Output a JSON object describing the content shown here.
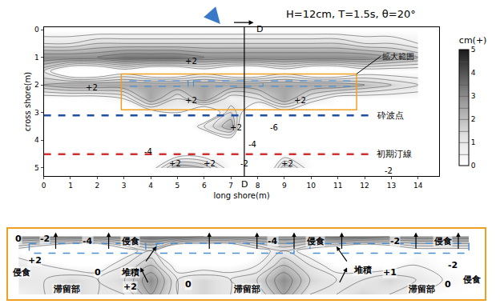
{
  "chart_data": [
    {
      "type": "contour",
      "title": "H=12cm, T=1.5s, θ=20°",
      "x_label": "long shore(m)",
      "y_label": "cross shore(m)",
      "x": [
        0,
        1,
        2,
        3,
        4,
        5,
        6,
        7,
        8,
        9,
        10,
        11,
        12,
        13,
        14
      ],
      "y": [
        0,
        0.5,
        1,
        1.5,
        2,
        2.5,
        3,
        3.5,
        4,
        4.5,
        5
      ],
      "z": [
        [
          0,
          0,
          0,
          0,
          0,
          0,
          0,
          0,
          0,
          0,
          0,
          0,
          0,
          0,
          0
        ],
        [
          1,
          1,
          1.5,
          1.5,
          1.5,
          1.5,
          1.5,
          1.5,
          1.5,
          1.5,
          1.5,
          1.5,
          1,
          1,
          0.5
        ],
        [
          3,
          3,
          3,
          3.5,
          3.5,
          3.5,
          3,
          3,
          3,
          3,
          3,
          3,
          3,
          2.5,
          2
        ],
        [
          1,
          -1,
          -1,
          0,
          -1,
          -1,
          0,
          -1,
          -1,
          0,
          -1,
          -1,
          0,
          0,
          0
        ],
        [
          2,
          2.5,
          2.5,
          2.5,
          2.5,
          2.5,
          2.5,
          2.5,
          2.5,
          2.5,
          2.5,
          2.5,
          2,
          1.5,
          1
        ],
        [
          0,
          0,
          0,
          0.5,
          2.5,
          1,
          2.5,
          0.5,
          1,
          2.5,
          1,
          0,
          0,
          0,
          0
        ],
        [
          0,
          0,
          0,
          -1,
          0,
          0.5,
          -1,
          1.5,
          -1,
          0,
          -1,
          0,
          0,
          0,
          0
        ],
        [
          0,
          0,
          0,
          -2,
          -2,
          -1,
          1,
          2.5,
          -5,
          -2,
          -1,
          0,
          0,
          0,
          0
        ],
        [
          0,
          0,
          0,
          -2,
          -4,
          -2,
          -1,
          0,
          -4,
          -2,
          -1,
          0,
          0,
          0,
          0
        ],
        [
          0,
          0,
          0,
          0,
          -1,
          0,
          0,
          0,
          -1,
          0,
          0,
          0,
          0,
          0,
          0
        ],
        [
          0,
          0,
          0,
          0,
          0,
          2.5,
          2,
          0,
          -2,
          2,
          0,
          0,
          0,
          -2,
          0
        ]
      ],
      "xlim": [
        0,
        14.8
      ],
      "xticks": [
        0,
        1,
        2,
        3,
        4,
        5,
        6,
        7,
        8,
        9,
        10,
        11,
        12,
        13,
        14
      ],
      "ylim": [
        5.3,
        -0.1
      ],
      "yticks": [
        0,
        1,
        2,
        3,
        4,
        5
      ],
      "colorbar": {
        "title": "cm(+)",
        "range": [
          0,
          5
        ],
        "ticks": [
          0,
          1,
          2,
          3,
          4,
          5
        ]
      },
      "lines": [
        {
          "text": "砕波点",
          "y": 3.1,
          "x": [
            0,
            12.4
          ],
          "color": "#2050a0",
          "line_style": "dash"
        },
        {
          "text": "初期汀線",
          "y": 4.5,
          "x": [
            0,
            12.4
          ],
          "color": "#d03030",
          "line_style": "dash"
        }
      ],
      "region": {
        "text": "拡大範囲",
        "x": [
          2.9,
          11.7
        ],
        "y": [
          1.6,
          2.9
        ],
        "color": "#f0a020"
      },
      "structures": {
        "color": "#4a90d0",
        "x": [
          [
            3.2,
            5.4
          ],
          [
            5.6,
            8.2
          ],
          [
            8.5,
            11.5
          ]
        ],
        "y": [
          1.85,
          2.05
        ]
      },
      "section": {
        "label": "D",
        "x": 7.5
      },
      "annotations": [
        {
          "text": "+2",
          "x": 5.5,
          "y": 1.15
        },
        {
          "text": "+2",
          "x": 1.8,
          "y": 2.1
        },
        {
          "text": "+2",
          "x": 5.5,
          "y": 2.55
        },
        {
          "text": "+2",
          "x": 9.6,
          "y": 2.55
        },
        {
          "text": "+2",
          "x": 7.2,
          "y": 3.55
        },
        {
          "text": "-6",
          "x": 8.6,
          "y": 3.55
        },
        {
          "text": "-4",
          "x": 3.9,
          "y": 4.4
        },
        {
          "text": "-4",
          "x": 7.8,
          "y": 4.15
        },
        {
          "text": "+2",
          "x": 4.9,
          "y": 4.85
        },
        {
          "text": "+2",
          "x": 6.2,
          "y": 4.85
        },
        {
          "text": "-2",
          "x": 7.5,
          "y": 4.85
        },
        {
          "text": "+2",
          "x": 9.1,
          "y": 4.85
        },
        {
          "text": "-2",
          "x": 12.9,
          "y": 5.1
        }
      ]
    },
    {
      "type": "contour",
      "x": [
        3,
        3.5,
        4,
        4.5,
        5,
        5.5,
        6,
        6.5,
        7,
        7.5,
        8,
        8.5,
        9,
        9.5,
        10,
        10.5,
        11,
        11.5
      ],
      "y": [
        1.7,
        2.0,
        2.3,
        2.6,
        2.9
      ],
      "z": [
        [
          3,
          3,
          3,
          3,
          3,
          3.5,
          3.5,
          3,
          3,
          3,
          3,
          3,
          3.5,
          3.5,
          3,
          3,
          3,
          3
        ],
        [
          0,
          -1,
          -2,
          -2,
          0,
          1,
          -2,
          -2,
          -2,
          0,
          1,
          0,
          -1,
          -2,
          -1,
          0,
          0,
          0
        ],
        [
          1,
          0.5,
          0,
          0,
          1,
          2,
          0,
          0,
          0,
          0.5,
          2,
          1,
          0,
          0,
          0,
          0.5,
          0,
          0
        ],
        [
          1,
          1,
          1.5,
          1,
          1.5,
          3,
          1,
          1.5,
          1,
          1.5,
          3,
          1.5,
          1,
          1,
          1.5,
          1,
          0.5,
          0
        ],
        [
          0.5,
          1,
          1.5,
          1,
          1,
          2.5,
          1,
          1.5,
          1,
          1,
          2.5,
          1,
          1,
          1.5,
          1,
          0.5,
          0,
          0
        ]
      ],
      "xlim": [
        2.8,
        11.8
      ],
      "ylim": [
        3.0,
        1.55
      ],
      "tick_labels": false,
      "annotations": [
        {
          "text": "0",
          "x": 3.0,
          "y": 1.75
        },
        {
          "text": "-2",
          "x": 3.5,
          "y": 1.75
        },
        {
          "text": "-4",
          "x": 4.3,
          "y": 1.8
        },
        {
          "text": "侵食",
          "x": 5.1,
          "y": 1.8
        },
        {
          "text": "-4",
          "x": 7.8,
          "y": 1.8
        },
        {
          "text": "侵食",
          "x": 8.6,
          "y": 1.8
        },
        {
          "text": "-2",
          "x": 10.1,
          "y": 1.8
        },
        {
          "text": "侵食",
          "x": 11.0,
          "y": 1.8
        },
        {
          "text": "侵食",
          "x": 3.05,
          "y": 2.45
        },
        {
          "text": "+2",
          "x": 3.3,
          "y": 2.2
        },
        {
          "text": "0",
          "x": 4.5,
          "y": 2.45
        },
        {
          "text": "堆積",
          "x": 5.1,
          "y": 2.45
        },
        {
          "text": "+2",
          "x": 5.1,
          "y": 2.75
        },
        {
          "text": "滞留部",
          "x": 3.9,
          "y": 2.8
        },
        {
          "text": "0",
          "x": 6.2,
          "y": 2.7
        },
        {
          "text": "滞留部",
          "x": 7.3,
          "y": 2.8
        },
        {
          "text": "堆積",
          "x": 9.5,
          "y": 2.4
        },
        {
          "text": "+1",
          "x": 10.0,
          "y": 2.45
        },
        {
          "text": "滞留部",
          "x": 10.6,
          "y": 2.8
        },
        {
          "text": "0",
          "x": 11.1,
          "y": 2.7
        },
        {
          "text": "-2",
          "x": 11.2,
          "y": 2.3
        },
        {
          "text": "侵食",
          "x": 11.55,
          "y": 2.6
        }
      ]
    }
  ]
}
